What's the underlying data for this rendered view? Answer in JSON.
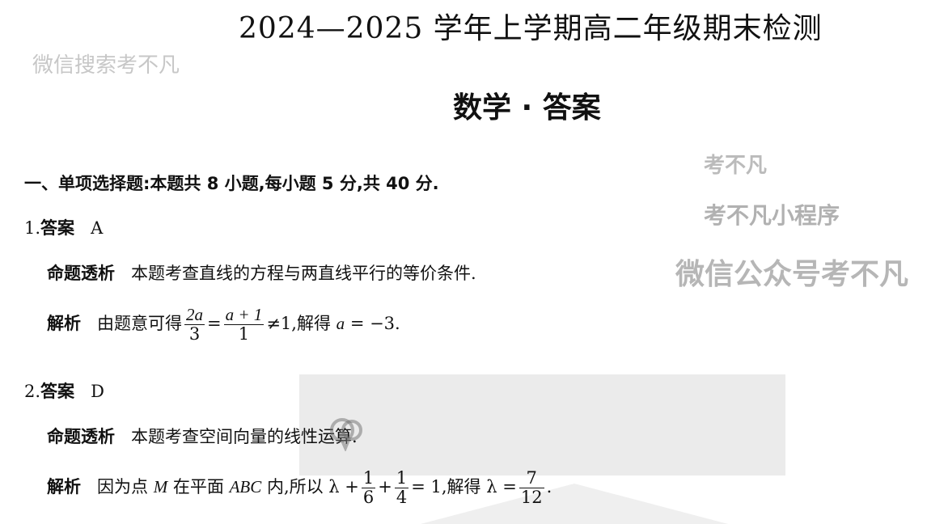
{
  "header": {
    "title": "2024—2025 学年上学期高二年级期末检测",
    "subtitle": "数学 · 答案"
  },
  "section": {
    "heading": "一、单项选择题:本题共 8 小题,每小题 5 分,共 40 分."
  },
  "questions": [
    {
      "number": "1.",
      "answer_label": "答案",
      "answer": "A",
      "topic_label": "命题透析",
      "topic": "本题考查直线的方程与两直线平行的等价条件.",
      "analysis_label": "解析",
      "analysis_prefix": "由题意可得",
      "f1_num": "2a",
      "f1_den": "3",
      "eq": "=",
      "f2_num": "a + 1",
      "f2_den": "1",
      "neq": "≠1,解得",
      "var": "a",
      "result": " = −3."
    },
    {
      "number": "2.",
      "answer_label": "答案",
      "answer": "D",
      "topic_label": "命题透析",
      "topic": "本题考查空间向量的线性运算.",
      "analysis_label": "解析",
      "analysis_prefix": "因为点",
      "point": "M",
      "mid": "在平面",
      "plane": "ABC",
      "mid2": "内,所以 λ +",
      "f1_num": "1",
      "f1_den": "6",
      "plus": "+",
      "f2_num": "1",
      "f2_den": "4",
      "eq": "= 1,解得 λ =",
      "f3_num": "7",
      "f3_den": "12",
      "end": "."
    }
  ],
  "watermarks": [
    "微信搜索考不凡",
    "考不凡",
    "考不凡小程序",
    "微信公众号考不凡"
  ],
  "watermark_icon": "wechat-icon"
}
